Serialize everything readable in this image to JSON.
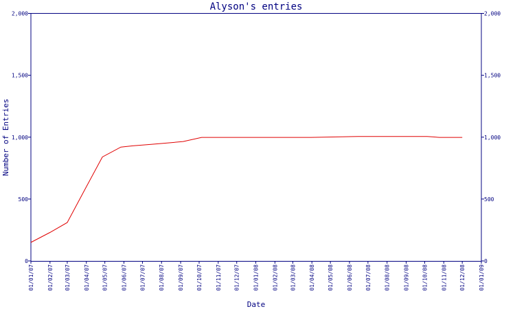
{
  "chart_data": {
    "type": "line",
    "title": "Alyson's entries",
    "xlabel": "Date",
    "ylabel": "Number of Entries",
    "ylim": [
      0,
      2000
    ],
    "yticks": [
      "0",
      "500",
      "1,000",
      "1,500",
      "2,000"
    ],
    "yticks_right": [
      "0",
      "500",
      "1,000",
      "1,500",
      "2,000"
    ],
    "xticks": [
      "01/01/07",
      "01/02/07",
      "01/03/07",
      "01/04/07",
      "01/05/07",
      "01/06/07",
      "01/07/07",
      "01/08/07",
      "01/09/07",
      "01/10/07",
      "01/11/07",
      "01/12/07",
      "01/01/08",
      "01/02/08",
      "01/03/08",
      "01/04/08",
      "01/05/08",
      "01/06/08",
      "01/07/08",
      "01/08/08",
      "01/09/08",
      "01/10/08",
      "01/11/08",
      "01/12/08",
      "01/01/09"
    ],
    "grid": false,
    "colors": {
      "line": "#e00000",
      "axis": "#000080",
      "text": "#000080"
    },
    "series": [
      {
        "x": [
          "2007-01-01",
          "2007-02-01",
          "2007-03-01",
          "2007-04-01",
          "2007-04-27",
          "2007-05-27",
          "2007-06-15",
          "2007-07-15",
          "2007-08-15",
          "2007-09-05",
          "2007-10-05",
          "2007-11-15",
          "2008-02-15",
          "2008-03-30",
          "2008-06-15",
          "2008-10-05",
          "2008-10-25",
          "2008-12-01"
        ],
        "values": [
          150,
          230,
          310,
          600,
          840,
          920,
          930,
          942,
          955,
          965,
          998,
          998,
          998,
          998,
          1005,
          1005,
          998,
          998
        ]
      }
    ]
  }
}
